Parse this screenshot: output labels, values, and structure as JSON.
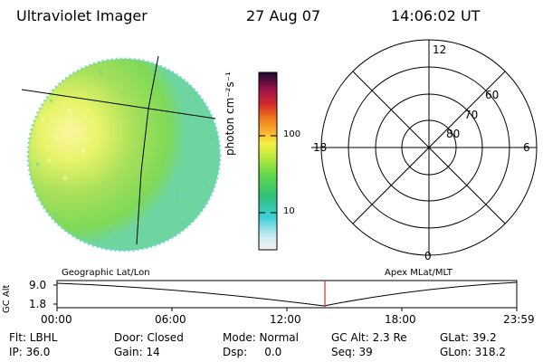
{
  "header": {
    "title": "Ultraviolet Imager",
    "date": "27 Aug 07",
    "time": "14:06:02 UT"
  },
  "colorbar": {
    "unit_label": "photon cm⁻²s⁻¹",
    "ticks": [
      "100",
      "10"
    ]
  },
  "polar_plot": {
    "clock_labels": [
      "12",
      "18",
      "6",
      "0"
    ],
    "lat_labels": [
      "60",
      "70",
      "80"
    ]
  },
  "timeline": {
    "left_caption": "Geographic Lat/Lon",
    "right_caption": "Apex MLat/MLT",
    "ylabel": "GC Alt",
    "yticks": [
      "9.0",
      "1.8"
    ],
    "xticks": [
      "00:00",
      "06:00",
      "12:00",
      "18:00",
      "23:59"
    ]
  },
  "status": {
    "row1": {
      "flt": "Flt: LBHL",
      "door": "Door: Closed",
      "mode": "Mode: Normal",
      "gcalt": "GC Alt: 2.3 Re",
      "glat": "GLat:  39.2"
    },
    "row2": {
      "ip": "IP: 36.0",
      "gain": "Gain: 14",
      "dsp": "Dsp:     0.0",
      "seq": "Seq: 39",
      "glon": "GLon: 318.2"
    }
  },
  "colors": {
    "image_base": "#7ed957",
    "image_bright": "#f4f66a",
    "image_edge": "#5fd6c8",
    "current_time_marker": "#c0392b"
  }
}
